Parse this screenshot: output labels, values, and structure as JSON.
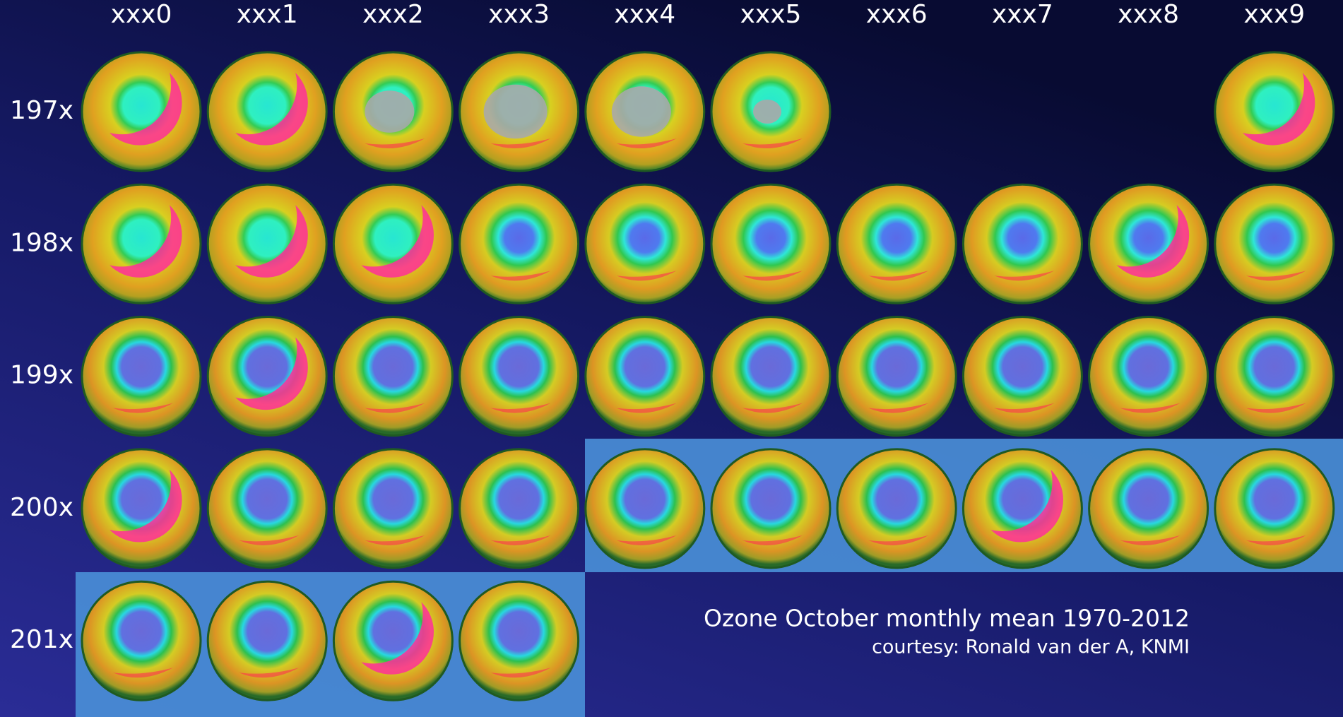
{
  "columns": [
    "xxx0",
    "xxx1",
    "xxx2",
    "xxx3",
    "xxx4",
    "xxx5",
    "xxx6",
    "xxx7",
    "xxx8",
    "xxx9"
  ],
  "rows": [
    "197x",
    "198x",
    "199x",
    "200x",
    "201x"
  ],
  "caption": {
    "title": "Ozone October monthly mean 1970-2012",
    "credit": "courtesy: Ronald van der A, KNMI"
  }
}
